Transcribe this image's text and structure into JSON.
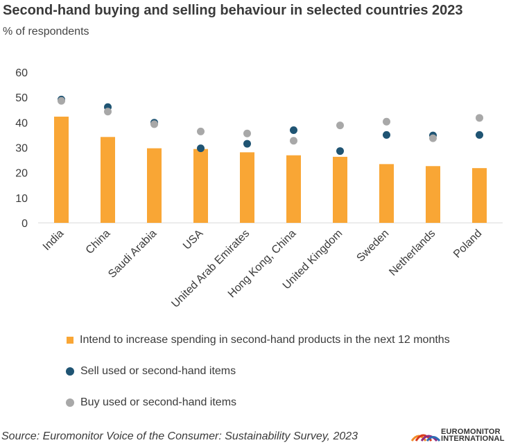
{
  "title": "Second-hand buying and selling behaviour in selected countries 2023",
  "subtitle": "% of respondents",
  "source": "Source: Euromonitor Voice of the Consumer: Sustainability Survey, 2023",
  "logo": {
    "line1": "EUROMONITOR",
    "line2": "INTERNATIONAL"
  },
  "colors": {
    "bar": "#F9A635",
    "sell": "#1F5473",
    "buy": "#A8A8A8",
    "axis": "#D9D9D9",
    "text": "#3a3a3a"
  },
  "chart_data": {
    "type": "bar",
    "title": "Second-hand buying and selling behaviour in selected countries 2023",
    "ylabel": "% of respondents",
    "ylim": [
      0,
      60
    ],
    "yticks": [
      0,
      10,
      20,
      30,
      40,
      50,
      60
    ],
    "grid": false,
    "legend_position": "bottom",
    "categories": [
      "India",
      "China",
      "Saudi Arabia",
      "USA",
      "United Arab Emirates",
      "Hong Kong, China",
      "United Kingdom",
      "Sweden",
      "Netherlands",
      "Poland"
    ],
    "series": [
      {
        "name": "Intend to increase spending in second-hand products in the next 12 months",
        "mark": "bar",
        "values": [
          42.3,
          34.2,
          29.7,
          29.4,
          28.1,
          26.9,
          26.3,
          23.4,
          22.6,
          21.8
        ]
      },
      {
        "name": "Sell used or second-hand items",
        "mark": "point",
        "values": [
          49.1,
          46.1,
          39.9,
          29.7,
          31.5,
          36.9,
          28.6,
          35.0,
          34.8,
          35.0
        ]
      },
      {
        "name": "Buy used or second-hand items",
        "mark": "point",
        "values": [
          48.6,
          44.3,
          39.3,
          36.4,
          35.6,
          32.7,
          38.8,
          40.3,
          33.7,
          41.8
        ]
      }
    ]
  }
}
